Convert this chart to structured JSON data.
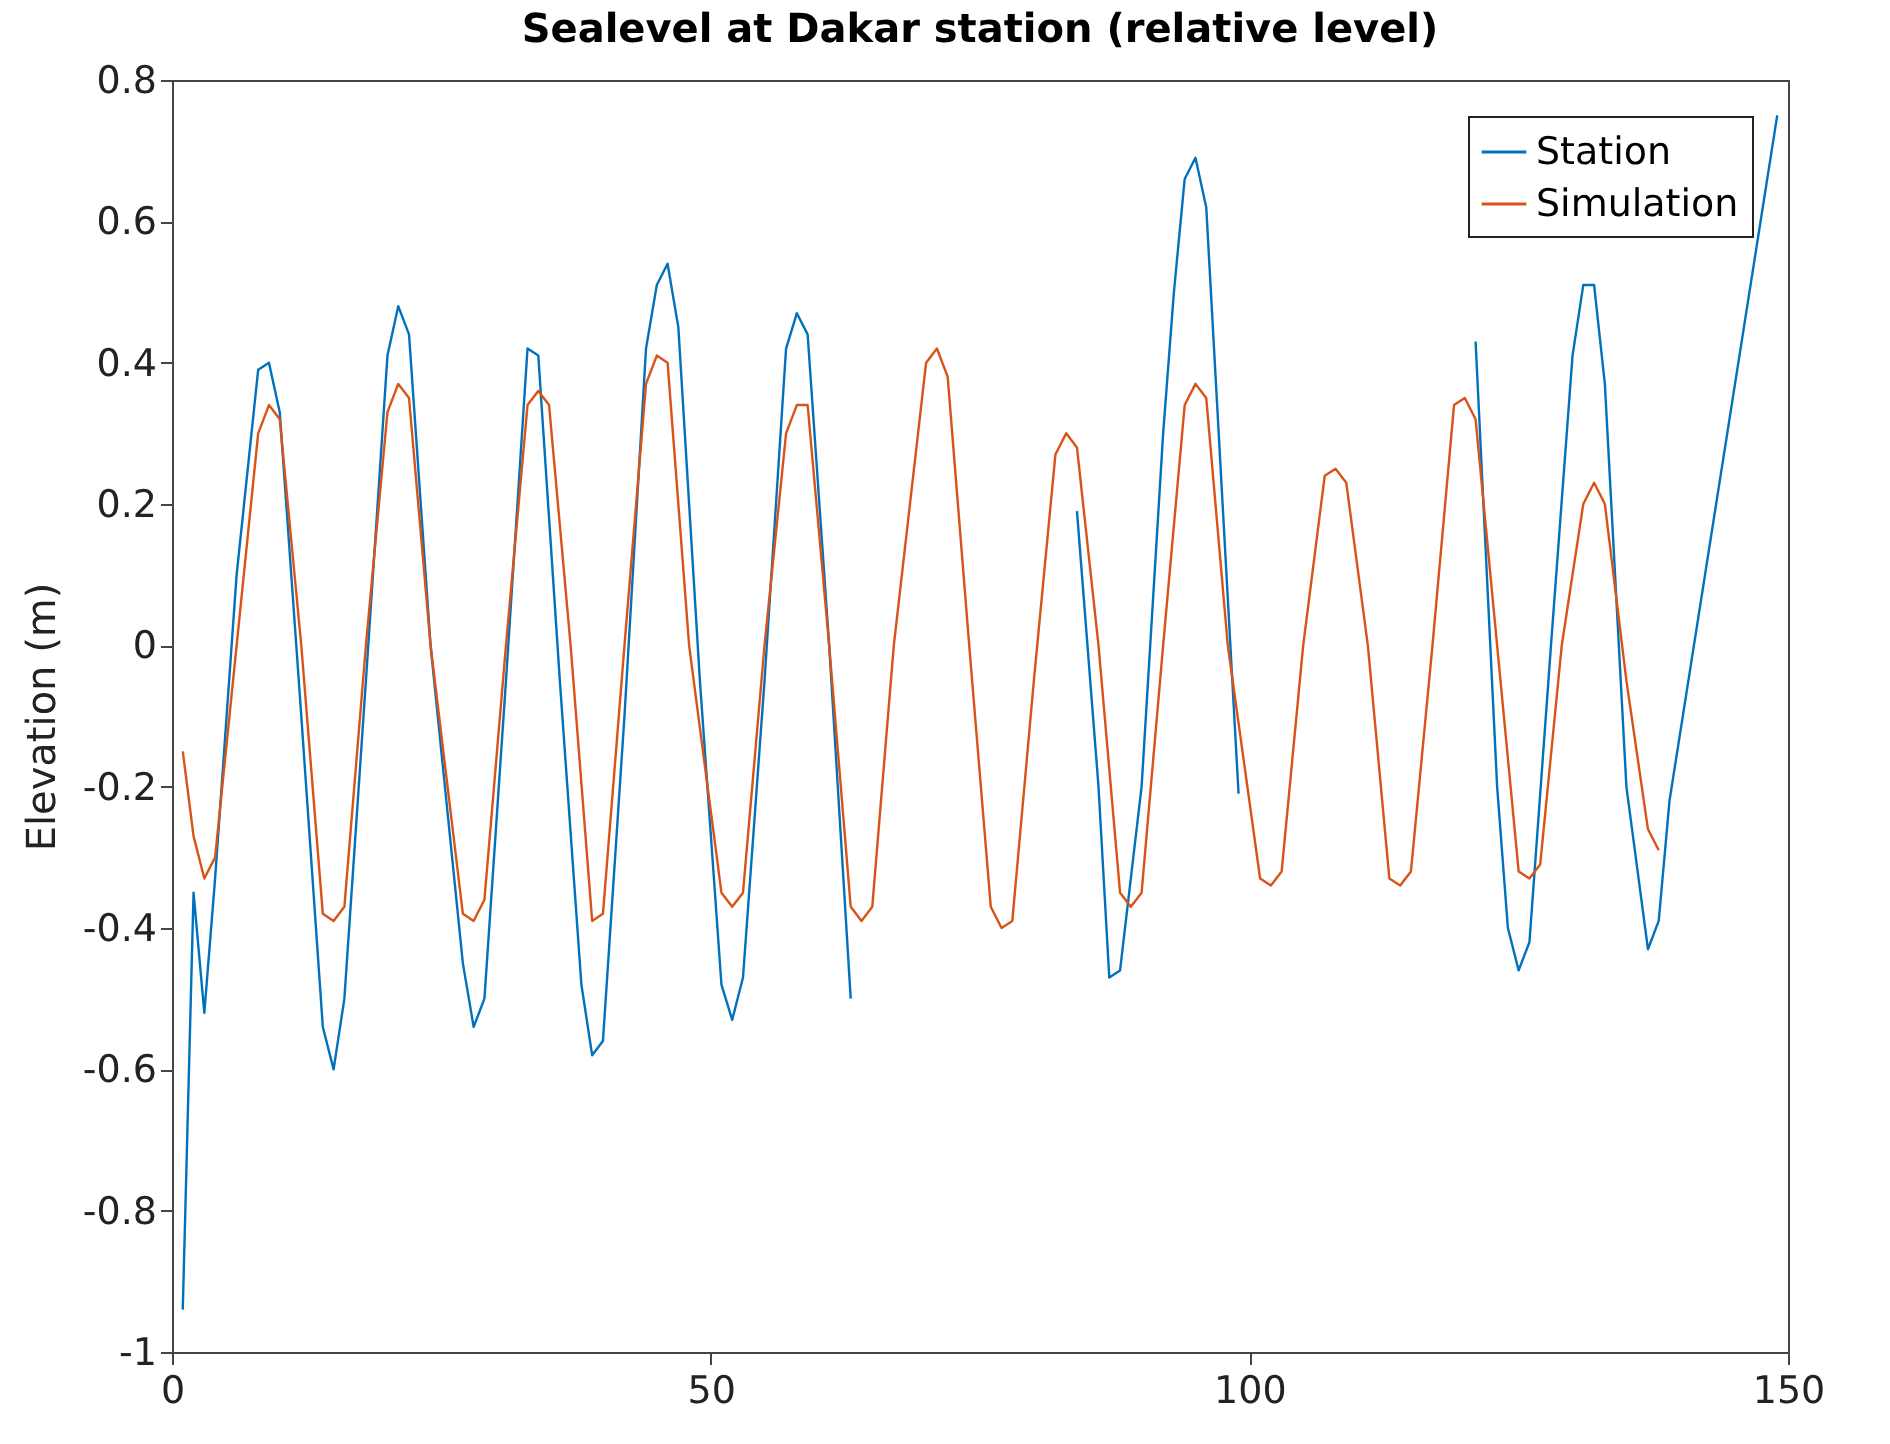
{
  "chart_data": {
    "type": "line",
    "title": "Sealevel at Dakar station (relative level)",
    "ylabel": "Elevation (m)",
    "xlim": [
      0,
      150
    ],
    "xticks": [
      0,
      50,
      100,
      150
    ],
    "ylim": [
      -1,
      0.8
    ],
    "yticks": [
      -1,
      -0.8,
      -0.6,
      -0.4,
      -0.2,
      0,
      0.2,
      0.4,
      0.6,
      0.8
    ],
    "grid": false,
    "legend": "top right",
    "series": [
      {
        "name": "Station",
        "color": "#0072bd",
        "x": [
          1,
          2,
          3,
          4,
          6,
          8,
          9,
          10,
          12,
          14,
          15,
          16,
          18,
          20,
          21,
          22,
          24,
          27,
          28,
          29,
          31,
          33,
          34,
          36,
          38,
          39,
          40,
          42,
          44,
          45,
          46,
          47,
          49,
          51,
          52,
          53,
          55,
          57,
          58,
          59,
          61,
          63,
          73,
          84,
          86,
          87,
          88,
          90,
          92,
          93,
          94,
          95,
          96,
          99,
          110,
          121,
          123,
          124,
          125,
          126,
          128,
          130,
          131,
          132,
          133,
          135,
          137,
          138,
          139,
          149
        ],
        "values": [
          -0.94,
          -0.35,
          -0.52,
          -0.33,
          0.1,
          0.39,
          0.4,
          0.33,
          -0.1,
          -0.54,
          -0.6,
          -0.5,
          -0.05,
          0.41,
          0.48,
          0.44,
          0,
          -0.45,
          -0.54,
          -0.5,
          -0.05,
          0.42,
          0.41,
          -0.05,
          -0.48,
          -0.58,
          -0.56,
          -0.1,
          0.42,
          0.51,
          0.54,
          0.45,
          -0.05,
          -0.48,
          -0.53,
          -0.47,
          -0.05,
          0.42,
          0.47,
          0.44,
          0,
          -0.5,
          null,
          0.19,
          -0.2,
          -0.47,
          -0.46,
          -0.2,
          0.3,
          0.5,
          0.66,
          0.69,
          0.62,
          -0.21,
          null,
          0.43,
          -0.2,
          -0.4,
          -0.46,
          -0.42,
          0,
          0.41,
          0.51,
          0.51,
          0.37,
          -0.2,
          -0.43,
          -0.39,
          -0.22,
          0.75
        ]
      },
      {
        "name": "Simulation",
        "color": "#d95319",
        "x": [
          1,
          2,
          3,
          4,
          6,
          8,
          9,
          10,
          12,
          14,
          15,
          16,
          18,
          20,
          21,
          22,
          24,
          27,
          28,
          29,
          31,
          33,
          34,
          35,
          37,
          39,
          40,
          42,
          44,
          45,
          46,
          48,
          51,
          52,
          53,
          55,
          57,
          58,
          59,
          61,
          63,
          64,
          65,
          67,
          70,
          71,
          72,
          74,
          76,
          77,
          78,
          80,
          82,
          83,
          84,
          86,
          88,
          89,
          90,
          92,
          94,
          95,
          96,
          98,
          101,
          102,
          103,
          105,
          107,
          108,
          109,
          111,
          113,
          114,
          115,
          117,
          119,
          120,
          121,
          123,
          125,
          126,
          127,
          129,
          131,
          132,
          133,
          135,
          137,
          138
        ],
        "values": [
          -0.15,
          -0.27,
          -0.33,
          -0.3,
          0,
          0.3,
          0.34,
          0.32,
          0,
          -0.38,
          -0.39,
          -0.37,
          0,
          0.33,
          0.37,
          0.35,
          0,
          -0.38,
          -0.39,
          -0.36,
          0,
          0.34,
          0.36,
          0.34,
          0,
          -0.39,
          -0.38,
          0,
          0.37,
          0.41,
          0.4,
          0,
          -0.35,
          -0.37,
          -0.35,
          0,
          0.3,
          0.34,
          0.34,
          0,
          -0.37,
          -0.39,
          -0.37,
          0,
          0.4,
          0.42,
          0.38,
          0,
          -0.37,
          -0.4,
          -0.39,
          -0.05,
          0.27,
          0.3,
          0.28,
          0,
          -0.35,
          -0.37,
          -0.35,
          0,
          0.34,
          0.37,
          0.35,
          0,
          -0.33,
          -0.34,
          -0.32,
          0,
          0.24,
          0.25,
          0.23,
          0,
          -0.33,
          -0.34,
          -0.32,
          0,
          0.34,
          0.35,
          0.32,
          0,
          -0.32,
          -0.33,
          -0.31,
          0,
          0.2,
          0.23,
          0.2,
          -0.05,
          -0.26,
          -0.29
        ]
      }
    ]
  }
}
